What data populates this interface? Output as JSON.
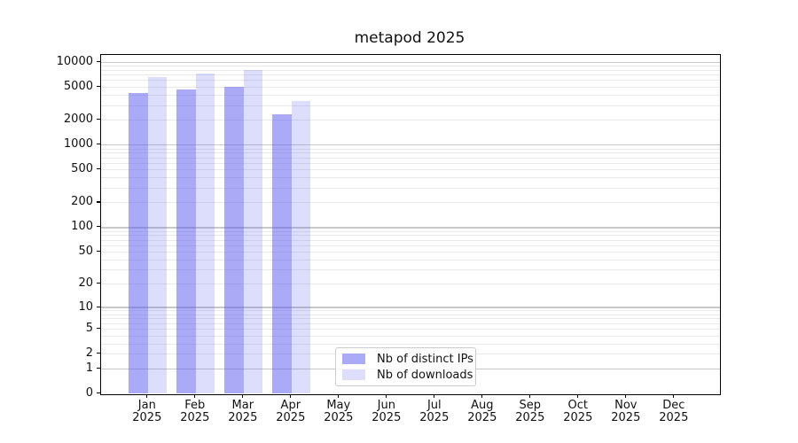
{
  "title": "metapod 2025",
  "chart_data": {
    "type": "bar",
    "title": "metapod 2025",
    "categories": [
      "Jan",
      "Feb",
      "Mar",
      "Apr",
      "May",
      "Jun",
      "Jul",
      "Aug",
      "Sep",
      "Oct",
      "Nov",
      "Dec"
    ],
    "year": "2025",
    "xlabel": "",
    "ylabel": "",
    "series": [
      {
        "name": "Nb of distinct IPs",
        "color": "rgba(85,85,238,0.5)",
        "values": [
          4200,
          4700,
          5000,
          2340,
          null,
          null,
          null,
          null,
          null,
          null,
          null,
          null
        ]
      },
      {
        "name": "Nb of downloads",
        "color": "rgba(85,85,238,0.2)",
        "values": [
          6600,
          7300,
          8100,
          3400,
          null,
          null,
          null,
          null,
          null,
          null,
          null,
          null
        ]
      }
    ],
    "yscale": "symlog-log10(1+v)",
    "yticks": [
      0,
      1,
      2,
      5,
      10,
      20,
      50,
      100,
      200,
      500,
      1000,
      2000,
      5000,
      10000
    ],
    "ylim": [
      0,
      12200
    ],
    "grid": true,
    "legend_position": "lower center"
  },
  "legend": {
    "items": [
      {
        "label": "Nb of distinct IPs",
        "color": "rgba(85,85,238,0.5)"
      },
      {
        "label": "Nb of downloads",
        "color": "rgba(85,85,238,0.2)"
      }
    ]
  },
  "colors": {
    "major_grid": "#c8c8c8",
    "minor_grid": "#e9e9e9",
    "spine": "#000000",
    "text": "#111111",
    "legend_border": "#cccccc"
  }
}
